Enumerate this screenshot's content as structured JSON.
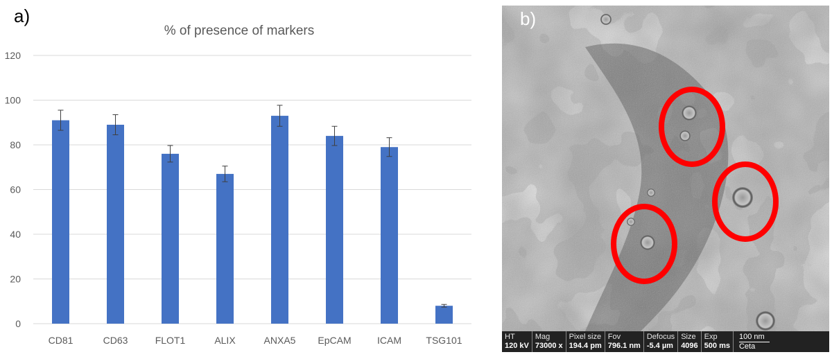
{
  "panel_a_label": "a)",
  "panel_b_label": "b)",
  "chart_data": {
    "type": "bar",
    "title": "% of presence of markers",
    "xlabel": "",
    "ylabel": "",
    "ylim": [
      0,
      120
    ],
    "yticks": [
      0,
      20,
      40,
      60,
      80,
      100,
      120
    ],
    "categories": [
      "CD81",
      "CD63",
      "FLOT1",
      "ALIX",
      "ANXA5",
      "EpCAM",
      "ICAM",
      "TSG101"
    ],
    "values": [
      91,
      89,
      76,
      67,
      93,
      84,
      79,
      8
    ],
    "errors": [
      4.5,
      4.5,
      3.7,
      3.5,
      4.7,
      4.3,
      4.2,
      0.6
    ],
    "grid": true,
    "bar_color": "#4472c4"
  },
  "micrograph": {
    "info_bar": [
      {
        "key": "HT",
        "value": "120 kV"
      },
      {
        "key": "Mag",
        "value": "73000 x"
      },
      {
        "key": "Pixel size",
        "value": "194.4 pm"
      },
      {
        "key": "Fov",
        "value": "796.1 nm"
      },
      {
        "key": "Defocus",
        "value": "-5.4 µm"
      },
      {
        "key": "Size",
        "value": "4096"
      },
      {
        "key": "Exp",
        "value": "500 ms"
      }
    ],
    "scale_bar": "100 nm",
    "camera": "Ceta",
    "highlight_color": "#ff0000"
  }
}
